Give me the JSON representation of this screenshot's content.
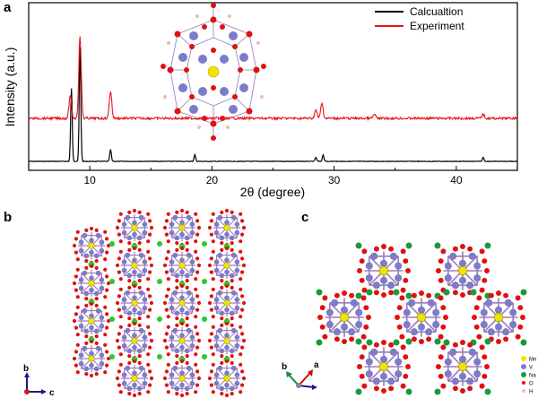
{
  "panels": {
    "a": "a",
    "b": "b",
    "c": "c"
  },
  "chart_data": {
    "type": "line",
    "xlabel": "2θ (degree)",
    "ylabel": "Intensity (a.u.)",
    "xlim": [
      5,
      45
    ],
    "xticks": [
      10,
      20,
      30,
      40
    ],
    "series": [
      {
        "name": "Calcualtion",
        "color": "#000000",
        "peaks": [
          {
            "x": 8.5,
            "h": 0.55
          },
          {
            "x": 9.2,
            "h": 0.86
          },
          {
            "x": 11.7,
            "h": 0.09
          },
          {
            "x": 18.6,
            "h": 0.05
          },
          {
            "x": 28.5,
            "h": 0.03
          },
          {
            "x": 29.1,
            "h": 0.05
          },
          {
            "x": 42.2,
            "h": 0.03
          }
        ]
      },
      {
        "name": "Experiment",
        "color": "#e8141c",
        "peaks": [
          {
            "x": 8.4,
            "h": 0.28
          },
          {
            "x": 9.2,
            "h": 1.0
          },
          {
            "x": 11.7,
            "h": 0.33
          },
          {
            "x": 28.5,
            "h": 0.1
          },
          {
            "x": 29.0,
            "h": 0.18
          },
          {
            "x": 33.3,
            "h": 0.05
          },
          {
            "x": 42.2,
            "h": 0.05
          }
        ]
      }
    ]
  },
  "axes_b": {
    "up": "b",
    "right": "c"
  },
  "axes_c": {
    "left": "b",
    "right": "a"
  },
  "legend_c": [
    {
      "label": "Mn",
      "color": "#f0e500"
    },
    {
      "label": "V",
      "color": "#7c7cc8"
    },
    {
      "label": "Na",
      "color": "#1a9a3a"
    },
    {
      "label": "O",
      "color": "#e01010"
    },
    {
      "label": "H",
      "color": "#f3b7b7"
    }
  ]
}
